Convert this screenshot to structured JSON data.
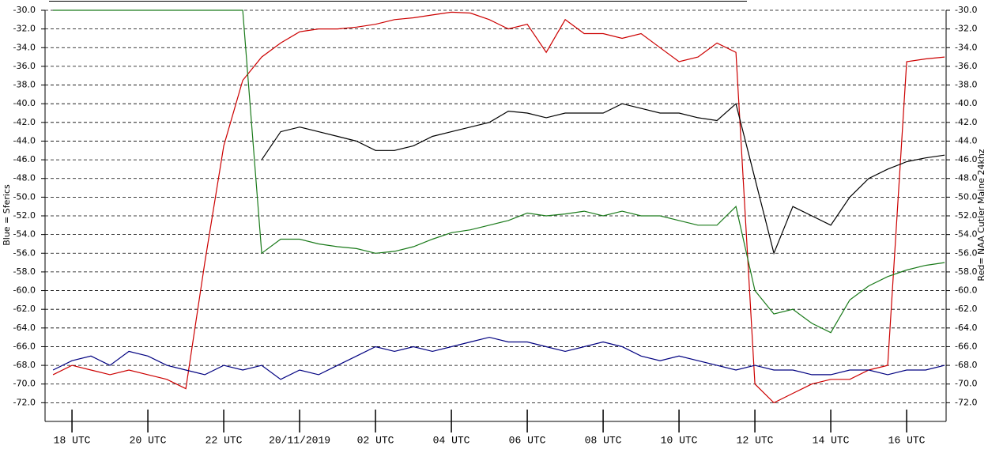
{
  "chart_data": {
    "type": "line",
    "y_label": "Blue = Sferics",
    "y2_label": "Red= NAA Cutler Maine 24khz",
    "x": [
      17.5,
      18,
      18.5,
      19,
      19.5,
      20,
      20.5,
      21,
      21.5,
      22,
      22.5,
      23,
      23.5,
      24,
      24.5,
      25,
      25.5,
      26,
      26.5,
      27,
      27.5,
      28,
      28.5,
      29,
      29.5,
      30,
      30.5,
      31,
      31.5,
      32,
      32.5,
      33,
      33.5,
      34,
      34.5,
      35,
      35.5,
      36,
      36.5,
      37,
      37.5,
      38,
      38.5,
      39,
      39.5,
      40,
      40.5,
      41
    ],
    "series": [
      {
        "color": "#cc0000",
        "axis": "y2",
        "values": [
          -69,
          -68,
          -68.5,
          -69,
          -68.5,
          -69,
          -69.5,
          -70.5,
          -57,
          -44.5,
          -37.5,
          -35,
          -33.5,
          -32.3,
          -32,
          -32,
          -31.8,
          -31.5,
          -31,
          -30.8,
          -30.5,
          -30.2,
          -30.3,
          -31,
          -32,
          -31.5,
          -34.5,
          -31,
          -32.5,
          -32.5,
          -33,
          -32.5,
          -34,
          -35.5,
          -35,
          -33.5,
          -34.5,
          -70,
          -72,
          -71,
          -70,
          -69.5,
          -69.5,
          -68.5,
          -68,
          -35.5,
          -35.2,
          -35
        ]
      },
      {
        "color": "#000000",
        "values": [
          null,
          null,
          null,
          null,
          null,
          null,
          null,
          null,
          null,
          null,
          null,
          -46,
          -43,
          -42.5,
          -43,
          -43.5,
          -44,
          -45,
          -45,
          -44.5,
          -43.5,
          -43,
          -42.5,
          -42,
          -40.8,
          -41,
          -41.5,
          -41,
          -41,
          -41,
          -40,
          -40.5,
          -41,
          -41,
          -41.5,
          -41.8,
          -40,
          -48,
          -56,
          -51,
          -52,
          -53,
          -50,
          -48,
          -47,
          -46.2,
          -45.8,
          -45.5
        ]
      },
      {
        "color": "#1a7a1a",
        "values": [
          -30,
          -30,
          -30,
          -30,
          -30,
          -30,
          -30,
          -30,
          -30,
          -30,
          -30,
          -56,
          -54.5,
          -54.5,
          -55,
          -55.3,
          -55.5,
          -56,
          -55.8,
          -55.3,
          -54.5,
          -53.8,
          -53.5,
          -53,
          -52.5,
          -51.7,
          -52,
          -51.8,
          -51.5,
          -52,
          -51.5,
          -52,
          -52,
          -52.5,
          -53,
          -53,
          -51,
          -60,
          -62.5,
          -62,
          -63.5,
          -64.5,
          -61,
          -59.5,
          -58.5,
          -57.8,
          -57.3,
          -57
        ]
      },
      {
        "color": "#000080",
        "values": [
          -68.5,
          -67.5,
          -67,
          -68,
          -66.5,
          -67,
          -68,
          -68.5,
          -69,
          -68,
          -68.5,
          -68,
          -69.5,
          -68.5,
          -69,
          -68,
          -67,
          -66,
          -66.5,
          -66,
          -66.5,
          -66,
          -65.5,
          -65,
          -65.5,
          -65.5,
          -66,
          -66.5,
          -66,
          -65.5,
          -66,
          -67,
          -67.5,
          -67,
          -67.5,
          -68,
          -68.5,
          -68,
          -68.5,
          -68.5,
          -69,
          -69,
          -68.5,
          -68.5,
          -69,
          -68.5,
          -68.5,
          -68
        ]
      }
    ],
    "xlim": [
      17.29,
      41.04
    ],
    "xticks": [
      {
        "value": 18,
        "label": "18 UTC"
      },
      {
        "value": 20,
        "label": "20 UTC"
      },
      {
        "value": 22,
        "label": "22 UTC"
      },
      {
        "value": 24,
        "label": "20/11/2019"
      },
      {
        "value": 26,
        "label": "02 UTC"
      },
      {
        "value": 28,
        "label": "04 UTC"
      },
      {
        "value": 30,
        "label": "06 UTC"
      },
      {
        "value": 32,
        "label": "08 UTC"
      },
      {
        "value": 34,
        "label": "10 UTC"
      },
      {
        "value": 36,
        "label": "12 UTC"
      },
      {
        "value": 38,
        "label": "14 UTC"
      },
      {
        "value": 40,
        "label": "16 UTC"
      }
    ],
    "ylim": [
      -74,
      -30
    ],
    "yticks": [
      {
        "value": -30,
        "label": "-30.0"
      },
      {
        "value": -32,
        "label": "-32.0"
      },
      {
        "value": -34,
        "label": "-34.0"
      },
      {
        "value": -36,
        "label": "-36.0"
      },
      {
        "value": -38,
        "label": "-38.0"
      },
      {
        "value": -40,
        "label": "-40.0"
      },
      {
        "value": -42,
        "label": "-42.0"
      },
      {
        "value": -44,
        "label": "-44.0"
      },
      {
        "value": -46,
        "label": "-46.0"
      },
      {
        "value": -48,
        "label": "-48.0"
      },
      {
        "value": -50,
        "label": "-50.0"
      },
      {
        "value": -52,
        "label": "-52.0"
      },
      {
        "value": -54,
        "label": "-54.0"
      },
      {
        "value": -56,
        "label": "-56.0"
      },
      {
        "value": -58,
        "label": "-58.0"
      },
      {
        "value": -60,
        "label": "-60.0"
      },
      {
        "value": -62,
        "label": "-62.0"
      },
      {
        "value": -64,
        "label": "-64.0"
      },
      {
        "value": -66,
        "label": "-66.0"
      },
      {
        "value": -68,
        "label": "-68.0"
      },
      {
        "value": -70,
        "label": "-70.0"
      },
      {
        "value": -72,
        "label": "-72.0"
      }
    ],
    "y2lim": [
      -74,
      -30
    ],
    "y2ticks": [
      {
        "value": -30,
        "label": "-30.0"
      },
      {
        "value": -32,
        "label": "-32.0"
      },
      {
        "value": -34,
        "label": "-34.0"
      },
      {
        "value": -36,
        "label": "-36.0"
      },
      {
        "value": -38,
        "label": "-38.0"
      },
      {
        "value": -40,
        "label": "-40.0"
      },
      {
        "value": -42,
        "label": "-42.0"
      },
      {
        "value": -44,
        "label": "-44.0"
      },
      {
        "value": -46,
        "label": "-46.0"
      },
      {
        "value": -48,
        "label": "-48.0"
      },
      {
        "value": -50,
        "label": "-50.0"
      },
      {
        "value": -52,
        "label": "-52.0"
      },
      {
        "value": -54,
        "label": "-54.0"
      },
      {
        "value": -56,
        "label": "-56.0"
      },
      {
        "value": -58,
        "label": "-58.0"
      },
      {
        "value": -60,
        "label": "-60.0"
      },
      {
        "value": -62,
        "label": "-62.0"
      },
      {
        "value": -64,
        "label": "-64.0"
      },
      {
        "value": -66,
        "label": "-66.0"
      },
      {
        "value": -68,
        "label": "-68.0"
      },
      {
        "value": -70,
        "label": "-70.0"
      },
      {
        "value": -72,
        "label": "-72.0"
      }
    ],
    "grid": true
  }
}
